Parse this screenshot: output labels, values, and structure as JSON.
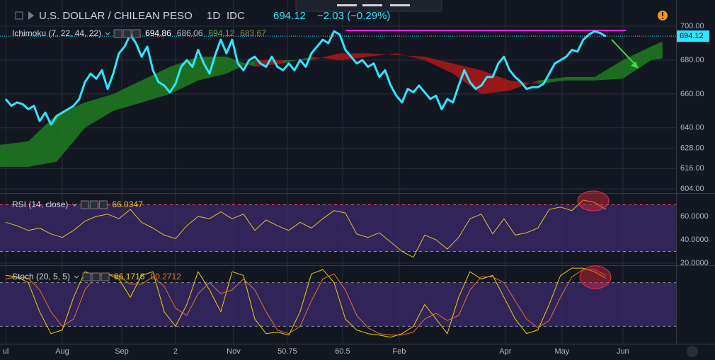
{
  "header": {
    "symbol": "U.S. DOLLAR / CHILEAN PESO",
    "interval": "1D",
    "exchange": "IDC",
    "change": "−2.03 (−0.29%)"
  },
  "chart_data": [
    {
      "type": "line",
      "title": "Ichimoku (7, 22, 44, 22)",
      "legend_values": [
        {
          "value": 694.86,
          "color": "#ffffff"
        },
        {
          "value": 686.06,
          "color": "#b2b5be"
        },
        {
          "value": 694.12,
          "color": "#4caf50"
        },
        {
          "value": 683.67,
          "color": "#8a8a3a"
        }
      ],
      "last_value": 694.12,
      "xlim": [
        0,
        119.4
      ],
      "ylim": [
        601.9,
        711.3
      ],
      "yticks": [
        {
          "value": 700,
          "label": "700.00"
        },
        {
          "value": 680,
          "label": "680.00"
        },
        {
          "value": 660,
          "label": "660.00"
        },
        {
          "value": 640,
          "label": "640.00"
        },
        {
          "value": 628,
          "label": "628.00"
        },
        {
          "value": 616,
          "label": "616.00"
        },
        {
          "value": 604,
          "label": "604.00"
        }
      ],
      "cloud": {
        "x": [
          0,
          5,
          10,
          15,
          20,
          25,
          30,
          35,
          40,
          45,
          50,
          55,
          60,
          65,
          70,
          75,
          80,
          85,
          90,
          95,
          100,
          105,
          110,
          115,
          117
        ],
        "span_a": [
          630,
          632,
          648,
          655,
          660,
          668,
          676,
          682,
          682,
          676,
          678,
          682,
          680,
          682,
          684,
          680,
          672,
          660,
          662,
          668,
          670,
          670,
          680,
          688,
          691
        ],
        "span_b": [
          617,
          617,
          620,
          640,
          650,
          655,
          660,
          668,
          672,
          680,
          680,
          680,
          684,
          684,
          683,
          682,
          678,
          674,
          668,
          666,
          668,
          668,
          669,
          680,
          681
        ],
        "up_color": "#1e7d1e",
        "down_color": "#b01818"
      },
      "hline": {
        "value": 697.5,
        "x": [
          61,
          110.6
        ],
        "color": "#e91ee9"
      },
      "series": [
        {
          "name": "USDCLP",
          "color": "#2ee6ff",
          "width": 3,
          "x": [
            1,
            2,
            3,
            4,
            5,
            6,
            7,
            8,
            9,
            10,
            11,
            12,
            13,
            14,
            15,
            16,
            17,
            18,
            19,
            20,
            21,
            22,
            23,
            24,
            25,
            26,
            27,
            28,
            29,
            30,
            31,
            32,
            33,
            34,
            35,
            36,
            37,
            38,
            39,
            40,
            41,
            42,
            43,
            44,
            45,
            46,
            47,
            48,
            49,
            50,
            51,
            52,
            53,
            54,
            55,
            56,
            57,
            58,
            59,
            60,
            61,
            62,
            63,
            64,
            65,
            66,
            67,
            68,
            69,
            70,
            71,
            72,
            73,
            74,
            75,
            76,
            77,
            78,
            79,
            80,
            81,
            82,
            83,
            84,
            85,
            86,
            87,
            88,
            89,
            90,
            91,
            92,
            93,
            94,
            95,
            96,
            97,
            98,
            99,
            100,
            101,
            102,
            103,
            104,
            105,
            106,
            107
          ],
          "values": [
            657,
            653,
            655,
            654,
            651,
            653,
            644,
            649,
            642,
            647,
            649,
            651,
            653,
            657,
            667,
            672,
            669,
            674,
            663,
            672,
            684,
            688,
            695,
            690,
            682,
            688,
            674,
            667,
            665,
            661,
            666,
            676,
            680,
            676,
            686,
            678,
            672,
            683,
            692,
            684,
            692,
            678,
            674,
            680,
            682,
            678,
            676,
            682,
            676,
            674,
            678,
            674,
            680,
            676,
            684,
            688,
            692,
            690,
            697,
            695,
            686,
            682,
            678,
            680,
            676,
            678,
            670,
            674,
            665,
            659,
            655,
            663,
            661,
            665,
            661,
            657,
            659,
            651,
            657,
            655,
            665,
            674,
            667,
            663,
            665,
            670,
            670,
            678,
            682,
            674,
            670,
            667,
            663,
            664,
            664,
            666,
            672,
            678,
            680,
            682,
            686,
            685,
            692,
            695,
            697,
            696,
            694
          ]
        }
      ]
    },
    {
      "type": "line",
      "title": "RSI (14, close)",
      "legend_values": [
        {
          "value": 66.0347,
          "color": "#e6c229"
        }
      ],
      "xlim": [
        0,
        119.4
      ],
      "ylim": [
        19.4,
        78.8
      ],
      "yticks": [
        {
          "value": 60,
          "label": "60.0000"
        },
        {
          "value": 40,
          "label": "40.0000"
        },
        {
          "value": 20,
          "label": "20.0000"
        }
      ],
      "levels": [
        {
          "value": 70,
          "color": "#e05050"
        },
        {
          "value": 30,
          "color": "#3fc23f"
        }
      ],
      "band_color": "#3b2a6b",
      "series": [
        {
          "name": "RSI",
          "color": "#e6c229",
          "width": 1,
          "x": [
            1,
            3,
            5,
            7,
            9,
            11,
            13,
            15,
            17,
            19,
            21,
            23,
            25,
            27,
            29,
            31,
            33,
            35,
            37,
            39,
            41,
            43,
            45,
            47,
            49,
            51,
            53,
            55,
            57,
            59,
            61,
            63,
            65,
            67,
            69,
            71,
            73,
            75,
            77,
            79,
            81,
            83,
            85,
            87,
            89,
            91,
            93,
            95,
            97,
            99,
            101,
            103,
            105,
            107
          ],
          "values": [
            55,
            52,
            48,
            50,
            45,
            42,
            48,
            56,
            60,
            62,
            58,
            66,
            55,
            50,
            44,
            41,
            52,
            60,
            58,
            64,
            58,
            62,
            48,
            57,
            52,
            48,
            55,
            50,
            58,
            65,
            63,
            45,
            42,
            46,
            38,
            30,
            25,
            44,
            40,
            32,
            42,
            58,
            62,
            45,
            58,
            44,
            46,
            50,
            66,
            68,
            65,
            74,
            72,
            66
          ]
        }
      ]
    },
    {
      "type": "line",
      "title": "Stoch (20, 5, 5)",
      "legend_values": [
        {
          "value": 86.1716,
          "color": "#f0d000"
        },
        {
          "value": 90.2712,
          "color": "#e2732a"
        }
      ],
      "xlim": [
        0,
        119.4
      ],
      "ylim": [
        0,
        102
      ],
      "levels": [
        {
          "value": 80,
          "color": "#8a8aa0"
        },
        {
          "value": 20,
          "color": "#8a8aa0"
        }
      ],
      "band_color": "#3b2a6b",
      "xticks": [
        {
          "value": 1,
          "label": "ul"
        },
        {
          "value": 11,
          "label": "Aug"
        },
        {
          "value": 21.5,
          "label": "Sep"
        },
        {
          "value": 31,
          "label": "2"
        },
        {
          "value": 41.25,
          "label": "Nov"
        },
        50.75,
        60.5,
        {
          "value": 70.5,
          "label": "Feb"
        },
        {
          "value": 89.25,
          "label": "Apr"
        },
        {
          "value": 99.25,
          "label": "May"
        },
        {
          "value": 110,
          "label": "Jun"
        }
      ],
      "series": [
        {
          "name": "%K",
          "color": "#f0d000",
          "width": 1,
          "x": [
            1,
            3,
            5,
            7,
            9,
            11,
            13,
            15,
            17,
            19,
            21,
            23,
            25,
            27,
            29,
            31,
            33,
            35,
            37,
            39,
            41,
            43,
            45,
            47,
            49,
            51,
            53,
            55,
            57,
            59,
            61,
            63,
            65,
            67,
            69,
            71,
            73,
            75,
            77,
            79,
            81,
            83,
            85,
            87,
            89,
            91,
            93,
            95,
            97,
            99,
            101,
            103,
            105,
            107
          ],
          "values": [
            90,
            88,
            80,
            40,
            10,
            15,
            60,
            95,
            90,
            92,
            85,
            60,
            90,
            95,
            40,
            20,
            50,
            95,
            70,
            40,
            95,
            90,
            30,
            10,
            12,
            8,
            40,
            92,
            98,
            80,
            30,
            15,
            10,
            8,
            5,
            10,
            20,
            50,
            30,
            10,
            60,
            95,
            85,
            90,
            60,
            30,
            10,
            15,
            50,
            90,
            100,
            100,
            95,
            86
          ]
        },
        {
          "name": "%D",
          "color": "#e2732a",
          "width": 1,
          "x": [
            1,
            3,
            5,
            7,
            9,
            11,
            13,
            15,
            17,
            19,
            21,
            23,
            25,
            27,
            29,
            31,
            33,
            35,
            37,
            39,
            41,
            43,
            45,
            47,
            49,
            51,
            53,
            55,
            57,
            59,
            61,
            63,
            65,
            67,
            69,
            71,
            73,
            75,
            77,
            79,
            81,
            83,
            85,
            87,
            89,
            91,
            93,
            95,
            97,
            99,
            101,
            103,
            105,
            107
          ],
          "values": [
            85,
            88,
            86,
            70,
            40,
            20,
            30,
            70,
            90,
            92,
            89,
            78,
            78,
            88,
            75,
            45,
            35,
            65,
            80,
            65,
            70,
            85,
            70,
            40,
            15,
            10,
            20,
            55,
            85,
            92,
            70,
            35,
            18,
            10,
            8,
            8,
            12,
            30,
            38,
            28,
            35,
            70,
            88,
            88,
            80,
            55,
            30,
            18,
            28,
            60,
            88,
            98,
            98,
            90
          ]
        }
      ]
    }
  ]
}
